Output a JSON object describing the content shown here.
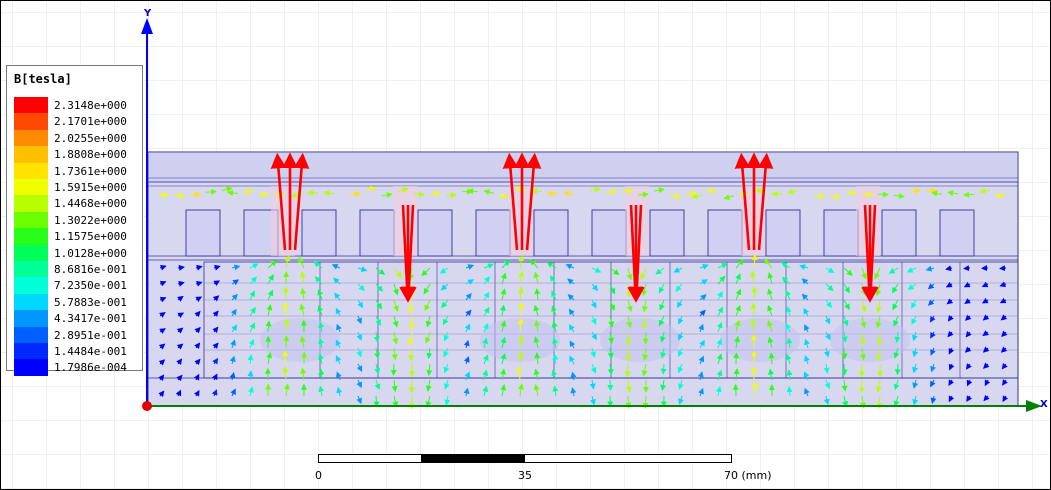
{
  "legend": {
    "title": "B[tesla]",
    "entries": [
      {
        "label": "2.3148e+000",
        "color": "#ff0000"
      },
      {
        "label": "2.1701e+000",
        "color": "#ff4a00"
      },
      {
        "label": "2.0255e+000",
        "color": "#ff8c00"
      },
      {
        "label": "1.8808e+000",
        "color": "#ffc000"
      },
      {
        "label": "1.7361e+000",
        "color": "#ffe400"
      },
      {
        "label": "1.5915e+000",
        "color": "#f0ff00"
      },
      {
        "label": "1.4468e+000",
        "color": "#b8ff00"
      },
      {
        "label": "1.3022e+000",
        "color": "#6cff00"
      },
      {
        "label": "1.1575e+000",
        "color": "#28ff18"
      },
      {
        "label": "1.0128e+000",
        "color": "#00ff58"
      },
      {
        "label": "8.6816e-001",
        "color": "#00ff98"
      },
      {
        "label": "7.2350e-001",
        "color": "#00ffd8"
      },
      {
        "label": "5.7883e-001",
        "color": "#00d8ff"
      },
      {
        "label": "4.3417e-001",
        "color": "#0098ff"
      },
      {
        "label": "2.8951e-001",
        "color": "#0060ff"
      },
      {
        "label": "1.4484e-001",
        "color": "#0028ff"
      },
      {
        "label": "1.7986e-004",
        "color": "#0000ff"
      }
    ]
  },
  "axes": {
    "x_label": "X",
    "y_label": "Y"
  },
  "scale_bar": {
    "tick_labels": [
      "0",
      "35",
      "70 (mm)"
    ]
  },
  "colors": {
    "air": "#d7d7ef",
    "iron": "#c8c8ec",
    "outline": "#333399",
    "axis_x": "#008000",
    "axis_y": "#0000ff",
    "origin": "#e00000"
  }
}
